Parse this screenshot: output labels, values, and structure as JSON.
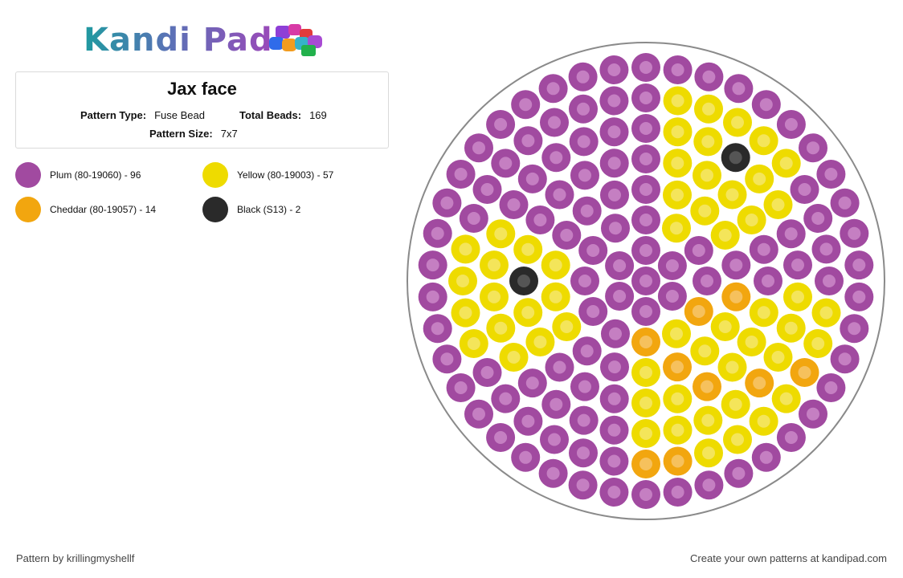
{
  "brand": {
    "name": "Kandi Pad"
  },
  "pattern": {
    "title": "Jax face",
    "type_label": "Pattern Type:",
    "type_value": "Fuse Bead",
    "total_label": "Total Beads:",
    "total_value": "169",
    "size_label": "Pattern Size:",
    "size_value": "7x7"
  },
  "legend": [
    {
      "label": "Plum (80-19060) - 96",
      "color": "#a14aa0"
    },
    {
      "label": "Yellow (80-19003) - 57",
      "color": "#eedb00"
    },
    {
      "label": "Cheddar (80-19057) - 14",
      "color": "#f2a60f"
    },
    {
      "label": "Black (S13) - 2",
      "color": "#2a2a2a"
    }
  ],
  "footer": {
    "credit": "Pattern by krillingmyshellf",
    "cta": "Create your own patterns at kandipad.com"
  }
}
